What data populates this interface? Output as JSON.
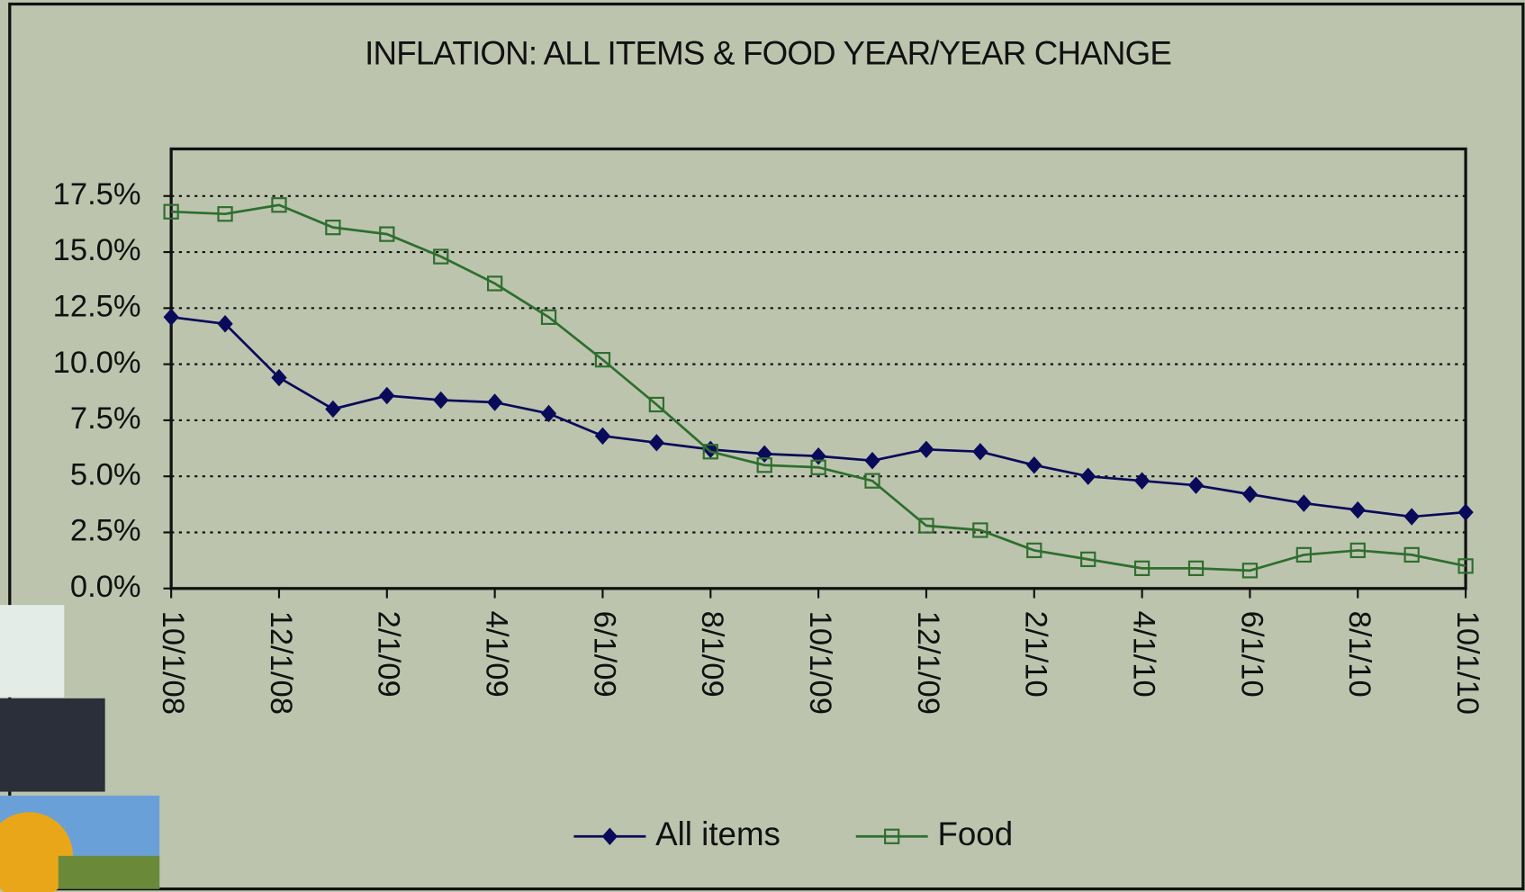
{
  "chart_data": {
    "type": "line",
    "title": "INFLATION: ALL ITEMS & FOOD YEAR/YEAR CHANGE",
    "categories": [
      "10/1/08",
      null,
      "12/1/08",
      null,
      "2/1/09",
      null,
      "4/1/09",
      null,
      "6/1/09",
      null,
      "8/1/09",
      null,
      "10/1/09",
      null,
      "12/1/09",
      null,
      "2/1/10",
      null,
      "4/1/10",
      null,
      "6/1/10",
      null,
      "8/1/10",
      null,
      "10/1/10"
    ],
    "series": [
      {
        "name": "All items",
        "color": "#0a0a5a",
        "marker": "diamond",
        "values": [
          12.1,
          11.8,
          9.4,
          8.0,
          8.6,
          8.4,
          8.3,
          7.8,
          6.8,
          6.5,
          6.2,
          6.0,
          5.9,
          5.7,
          6.2,
          6.1,
          5.5,
          5.0,
          4.8,
          4.6,
          4.2,
          3.8,
          3.5,
          3.2,
          3.4
        ]
      },
      {
        "name": "Food",
        "color": "#2e6e2e",
        "marker": "square",
        "values": [
          16.8,
          16.7,
          17.1,
          16.1,
          15.8,
          14.8,
          13.6,
          12.1,
          10.2,
          8.2,
          6.1,
          5.5,
          5.4,
          4.8,
          2.8,
          2.6,
          1.7,
          1.3,
          0.9,
          0.9,
          0.8,
          1.5,
          1.7,
          1.5,
          1.0
        ]
      }
    ],
    "ylim": [
      0,
      19.6
    ],
    "yticks": [
      {
        "value": 0,
        "label": "0.0%"
      },
      {
        "value": 2.5,
        "label": "2.5%"
      },
      {
        "value": 5,
        "label": "5.0%"
      },
      {
        "value": 7.5,
        "label": "7.5%"
      },
      {
        "value": 10,
        "label": "10.0%"
      },
      {
        "value": 12.5,
        "label": "12.5%"
      },
      {
        "value": 15,
        "label": "15.0%"
      },
      {
        "value": 17.5,
        "label": "17.5%"
      }
    ],
    "grid": true,
    "legend": "bottom"
  }
}
